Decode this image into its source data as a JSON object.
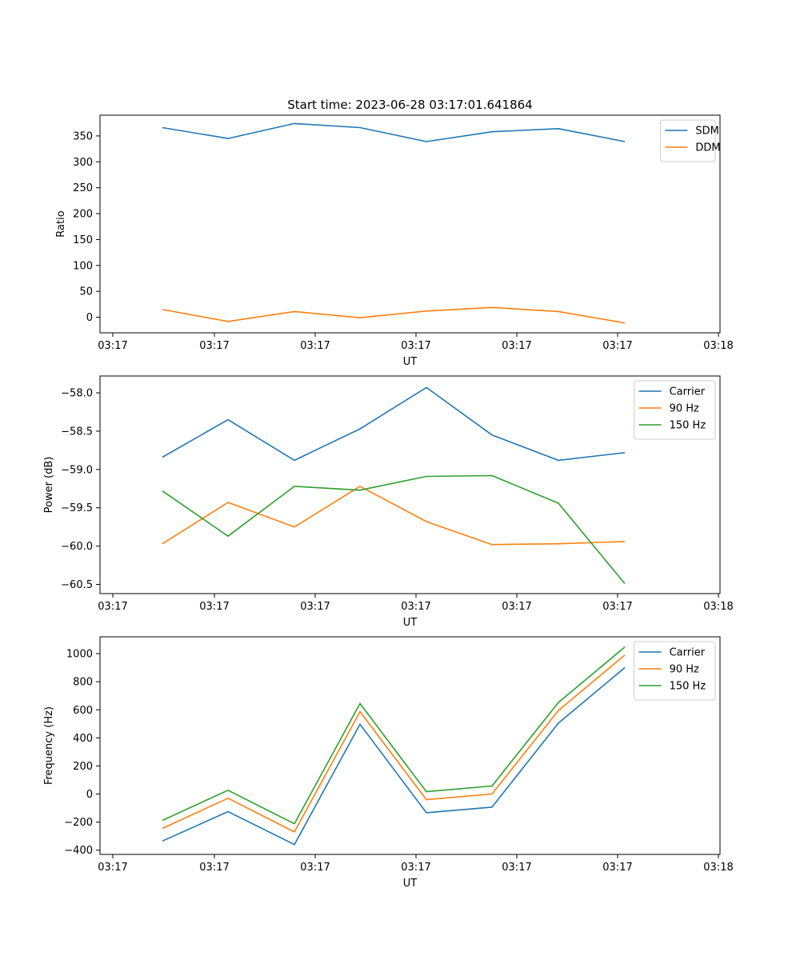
{
  "chart_data": [
    {
      "type": "line",
      "title": "Start time: 2023-06-28 03:17:01.641864",
      "xlabel": "UT",
      "ylabel": "Ratio",
      "x_tick_labels": [
        "03:17",
        "03:17",
        "03:17",
        "03:17",
        "03:17",
        "03:17",
        "03:18"
      ],
      "ylim": [
        -30,
        390
      ],
      "y_ticks": [
        0,
        50,
        100,
        150,
        200,
        250,
        300,
        350
      ],
      "grid": false,
      "legend_position": "upper right",
      "series": [
        {
          "name": "SDM",
          "color": "#1f77b4",
          "values": [
            366,
            345,
            374,
            366,
            339,
            358,
            364,
            339
          ]
        },
        {
          "name": "DDM",
          "color": "#ff7f0e",
          "values": [
            15,
            -8,
            11,
            -1,
            12,
            19,
            11,
            -11
          ]
        }
      ]
    },
    {
      "type": "line",
      "title": "",
      "xlabel": "UT",
      "ylabel": "Power (dB)",
      "x_tick_labels": [
        "03:17",
        "03:17",
        "03:17",
        "03:17",
        "03:17",
        "03:17",
        "03:18"
      ],
      "ylim": [
        -60.62,
        -57.78
      ],
      "y_ticks": [
        -60.5,
        -60.0,
        -59.5,
        -59.0,
        -58.5,
        -58.0
      ],
      "y_tick_labels": [
        "−60.5",
        "−60.0",
        "−59.5",
        "−59.0",
        "−58.5",
        "−58.0"
      ],
      "grid": false,
      "legend_position": "upper right",
      "series": [
        {
          "name": "Carrier",
          "color": "#1f77b4",
          "values": [
            -58.84,
            -58.35,
            -58.88,
            -58.47,
            -57.93,
            -58.55,
            -58.88,
            -58.78
          ]
        },
        {
          "name": "90 Hz",
          "color": "#ff7f0e",
          "values": [
            -59.97,
            -59.43,
            -59.75,
            -59.22,
            -59.68,
            -59.98,
            -59.97,
            -59.94
          ]
        },
        {
          "name": "150 Hz",
          "color": "#2ca02c",
          "values": [
            -59.28,
            -59.87,
            -59.22,
            -59.27,
            -59.09,
            -59.08,
            -59.44,
            -60.49
          ]
        }
      ]
    },
    {
      "type": "line",
      "title": "",
      "xlabel": "UT",
      "ylabel": "Frequency (Hz)",
      "x_tick_labels": [
        "03:17",
        "03:17",
        "03:17",
        "03:17",
        "03:17",
        "03:17",
        "03:18"
      ],
      "ylim": [
        -430,
        1120
      ],
      "y_ticks": [
        -400,
        -200,
        0,
        200,
        400,
        600,
        800,
        1000
      ],
      "y_tick_labels": [
        "−400",
        "−200",
        "0",
        "200",
        "400",
        "600",
        "800",
        "1000"
      ],
      "grid": false,
      "legend_position": "upper right",
      "series": [
        {
          "name": "Carrier",
          "color": "#1f77b4",
          "values": [
            -335,
            -125,
            -360,
            497,
            -133,
            -93,
            505,
            900
          ]
        },
        {
          "name": "90 Hz",
          "color": "#ff7f0e",
          "values": [
            -245,
            -30,
            -270,
            587,
            -40,
            0,
            595,
            990
          ]
        },
        {
          "name": "150 Hz",
          "color": "#2ca02c",
          "values": [
            -188,
            27,
            -212,
            645,
            17,
            57,
            652,
            1047
          ]
        }
      ]
    }
  ]
}
